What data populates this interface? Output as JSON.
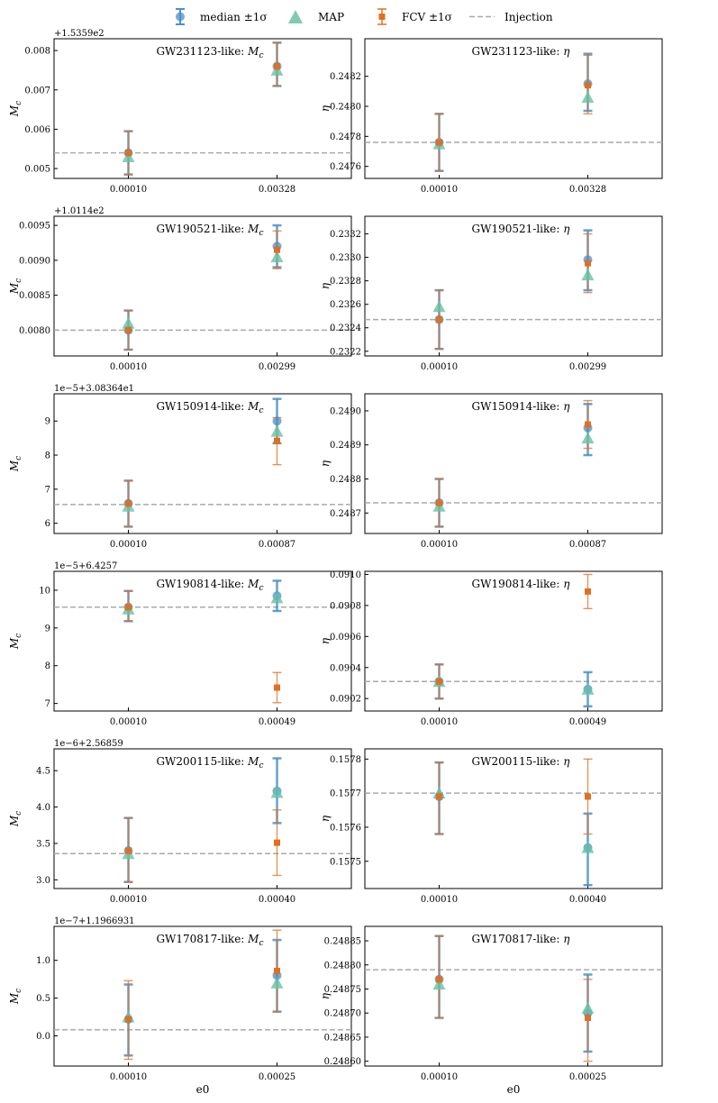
{
  "legend": {
    "items": [
      {
        "label": "median ±1σ",
        "marker": "circle-errorbar",
        "color": "#4a90c8"
      },
      {
        "label": "MAP",
        "marker": "triangle",
        "color": "#66c2a5"
      },
      {
        "label": "FCV ±1σ",
        "marker": "square-errorbar",
        "color": "#e07020"
      },
      {
        "label": "Injection",
        "marker": "dashed-line",
        "color": "#aaaaaa"
      }
    ]
  },
  "colors": {
    "median": "#4a90c8",
    "map": "#66c2a5",
    "fcv": "#e07020",
    "injection": "#aaaaaa",
    "overlap": "#8c7b70"
  },
  "chart_data": [
    {
      "type": "errorbar",
      "title": "GW231123-like: ",
      "title_symbol": "M",
      "title_sub": "c",
      "ylabel": "M",
      "ylabel_sub": "c",
      "offset_label": "+1.5359e2",
      "xlabel": "",
      "categories": [
        "0.00010",
        "0.00328"
      ],
      "ylim": [
        0.00475,
        0.0083
      ],
      "yticks": [
        0.005,
        0.006,
        0.007,
        0.008
      ],
      "ytick_labels": [
        "0.005",
        "0.006",
        "0.007",
        "0.008"
      ],
      "injection": 0.0054,
      "median": [
        0.0054,
        0.0076
      ],
      "median_err": [
        [
          0.00485,
          0.00595
        ],
        [
          0.0071,
          0.0082
        ]
      ],
      "map": [
        0.0053,
        0.0075
      ],
      "fcv": [
        0.0054,
        0.0076
      ],
      "fcv_err": [
        [
          0.00485,
          0.00595
        ],
        [
          0.0071,
          0.0082
        ]
      ]
    },
    {
      "type": "errorbar",
      "title": "GW231123-like: ",
      "title_symbol": "η",
      "title_sub": "",
      "ylabel": "η",
      "ylabel_sub": "",
      "offset_label": "",
      "xlabel": "",
      "categories": [
        "0.00010",
        "0.00328"
      ],
      "ylim": [
        0.24752,
        0.24845
      ],
      "yticks": [
        0.2476,
        0.2478,
        0.248,
        0.2482
      ],
      "ytick_labels": [
        "0.2476",
        "0.2478",
        "0.2480",
        "0.2482"
      ],
      "injection": 0.24776,
      "median": [
        0.24776,
        0.24815
      ],
      "median_err": [
        [
          0.24757,
          0.24795
        ],
        [
          0.24797,
          0.24835
        ]
      ],
      "map": [
        0.24775,
        0.24806
      ],
      "fcv": [
        0.24776,
        0.24814
      ],
      "fcv_err": [
        [
          0.24757,
          0.24795
        ],
        [
          0.24795,
          0.24834
        ]
      ]
    },
    {
      "type": "errorbar",
      "title": "GW190521-like: ",
      "title_symbol": "M",
      "title_sub": "c",
      "ylabel": "M",
      "ylabel_sub": "c",
      "offset_label": "+1.0114e2",
      "xlabel": "",
      "categories": [
        "0.00010",
        "0.00299"
      ],
      "ylim": [
        0.00763,
        0.00963
      ],
      "yticks": [
        0.008,
        0.0085,
        0.009,
        0.0095
      ],
      "ytick_labels": [
        "0.0080",
        "0.0085",
        "0.0090",
        "0.0095"
      ],
      "injection": 0.008,
      "median": [
        0.008,
        0.0092
      ],
      "median_err": [
        [
          0.00772,
          0.00828
        ],
        [
          0.0089,
          0.0095
        ]
      ],
      "map": [
        0.0081,
        0.00905
      ],
      "fcv": [
        0.008,
        0.00915
      ],
      "fcv_err": [
        [
          0.00772,
          0.00828
        ],
        [
          0.00888,
          0.00942
        ]
      ]
    },
    {
      "type": "errorbar",
      "title": "GW190521-like: ",
      "title_symbol": "η",
      "title_sub": "",
      "ylabel": "η",
      "ylabel_sub": "",
      "offset_label": "",
      "xlabel": "",
      "categories": [
        "0.00010",
        "0.00299"
      ],
      "ylim": [
        0.23216,
        0.23335
      ],
      "yticks": [
        0.2322,
        0.2324,
        0.2326,
        0.2328,
        0.233,
        0.2332
      ],
      "ytick_labels": [
        "0.2322",
        "0.2324",
        "0.2326",
        "0.2328",
        "0.2330",
        "0.2332"
      ],
      "injection": 0.23247,
      "median": [
        0.23247,
        0.23298
      ],
      "median_err": [
        [
          0.23222,
          0.23272
        ],
        [
          0.23272,
          0.23323
        ]
      ],
      "map": [
        0.23258,
        0.23285
      ],
      "fcv": [
        0.23247,
        0.23295
      ],
      "fcv_err": [
        [
          0.23222,
          0.23272
        ],
        [
          0.2327,
          0.2332
        ]
      ]
    },
    {
      "type": "errorbar",
      "title": "GW150914-like: ",
      "title_symbol": "M",
      "title_sub": "c",
      "ylabel": "M",
      "ylabel_sub": "c",
      "offset_label": "1e−5+3.08364e1",
      "xlabel": "",
      "categories": [
        "0.00010",
        "0.00087"
      ],
      "ylim": [
        5.7,
        9.8
      ],
      "yticks": [
        6,
        7,
        8,
        9
      ],
      "ytick_labels": [
        "6",
        "7",
        "8",
        "9"
      ],
      "injection": 6.55,
      "median": [
        6.58,
        9.0
      ],
      "median_err": [
        [
          5.9,
          7.25
        ],
        [
          8.35,
          9.65
        ]
      ],
      "map": [
        6.5,
        8.7
      ],
      "fcv": [
        6.58,
        8.42
      ],
      "fcv_err": [
        [
          5.9,
          7.25
        ],
        [
          7.72,
          9.1
        ]
      ]
    },
    {
      "type": "errorbar",
      "title": "GW150914-like: ",
      "title_symbol": "η",
      "title_sub": "",
      "ylabel": "η",
      "ylabel_sub": "",
      "offset_label": "",
      "xlabel": "",
      "categories": [
        "0.00010",
        "0.00087"
      ],
      "ylim": [
        0.24864,
        0.24905
      ],
      "yticks": [
        0.2487,
        0.2488,
        0.2489,
        0.249
      ],
      "ytick_labels": [
        "0.2487",
        "0.2488",
        "0.2489",
        "0.2490"
      ],
      "injection": 0.24873,
      "median": [
        0.24873,
        0.24895
      ],
      "median_err": [
        [
          0.24866,
          0.2488
        ],
        [
          0.24887,
          0.24902
        ]
      ],
      "map": [
        0.24872,
        0.24892
      ],
      "fcv": [
        0.24873,
        0.24896
      ],
      "fcv_err": [
        [
          0.24866,
          0.2488
        ],
        [
          0.24889,
          0.24903
        ]
      ]
    },
    {
      "type": "errorbar",
      "title": "GW190814-like: ",
      "title_symbol": "M",
      "title_sub": "c",
      "ylabel": "M",
      "ylabel_sub": "c",
      "offset_label": "1e−5+6.4257",
      "xlabel": "",
      "categories": [
        "0.00010",
        "0.00049"
      ],
      "ylim": [
        6.8,
        10.5
      ],
      "yticks": [
        7,
        8,
        9,
        10
      ],
      "ytick_labels": [
        "7",
        "8",
        "9",
        "10"
      ],
      "injection": 9.55,
      "median": [
        9.55,
        9.85
      ],
      "median_err": [
        [
          9.18,
          9.98
        ],
        [
          9.45,
          10.25
        ]
      ],
      "map": [
        9.5,
        9.8
      ],
      "fcv": [
        9.55,
        7.42
      ],
      "fcv_err": [
        [
          9.18,
          9.98
        ],
        [
          7.02,
          7.82
        ]
      ]
    },
    {
      "type": "errorbar",
      "title": "GW190814-like: ",
      "title_symbol": "η",
      "title_sub": "",
      "ylabel": "η",
      "ylabel_sub": "",
      "offset_label": "",
      "xlabel": "",
      "categories": [
        "0.00010",
        "0.00049"
      ],
      "ylim": [
        0.09012,
        0.09102
      ],
      "yticks": [
        0.0902,
        0.0904,
        0.0906,
        0.0908,
        0.091
      ],
      "ytick_labels": [
        "0.0902",
        "0.0904",
        "0.0906",
        "0.0908",
        "0.0910"
      ],
      "injection": 0.09031,
      "median": [
        0.09031,
        0.09026
      ],
      "median_err": [
        [
          0.0902,
          0.09042
        ],
        [
          0.09015,
          0.09037
        ]
      ],
      "map": [
        0.09031,
        0.09026
      ],
      "fcv": [
        0.09031,
        0.09089
      ],
      "fcv_err": [
        [
          0.0902,
          0.09042
        ],
        [
          0.09078,
          0.091
        ]
      ]
    },
    {
      "type": "errorbar",
      "title": "GW200115-like: ",
      "title_symbol": "M",
      "title_sub": "c",
      "ylabel": "M",
      "ylabel_sub": "c",
      "offset_label": "1e−6+2.56859",
      "xlabel": "",
      "categories": [
        "0.00010",
        "0.00040"
      ],
      "ylim": [
        2.88,
        4.8
      ],
      "yticks": [
        3.0,
        3.5,
        4.0,
        4.5
      ],
      "ytick_labels": [
        "3.0",
        "3.5",
        "4.0",
        "4.5"
      ],
      "injection": 3.36,
      "median": [
        3.4,
        4.22
      ],
      "median_err": [
        [
          2.97,
          3.85
        ],
        [
          3.78,
          4.67
        ]
      ],
      "map": [
        3.36,
        4.2
      ],
      "fcv": [
        3.4,
        3.51
      ],
      "fcv_err": [
        [
          2.97,
          3.85
        ],
        [
          3.06,
          3.96
        ]
      ]
    },
    {
      "type": "errorbar",
      "title": "GW200115-like: ",
      "title_symbol": "η",
      "title_sub": "",
      "ylabel": "η",
      "ylabel_sub": "",
      "offset_label": "",
      "xlabel": "",
      "categories": [
        "0.00010",
        "0.00040"
      ],
      "ylim": [
        0.15742,
        0.15783
      ],
      "yticks": [
        0.1575,
        0.1576,
        0.1577,
        0.1578
      ],
      "ytick_labels": [
        "0.1575",
        "0.1576",
        "0.1577",
        "0.1578"
      ],
      "injection": 0.1577,
      "median": [
        0.15769,
        0.15754
      ],
      "median_err": [
        [
          0.15758,
          0.15779
        ],
        [
          0.15743,
          0.15764
        ]
      ],
      "map": [
        0.1577,
        0.15754
      ],
      "fcv": [
        0.15769,
        0.15769
      ],
      "fcv_err": [
        [
          0.15758,
          0.15779
        ],
        [
          0.15758,
          0.1578
        ]
      ]
    },
    {
      "type": "errorbar",
      "title": "GW170817-like: ",
      "title_symbol": "M",
      "title_sub": "c",
      "ylabel": "M",
      "ylabel_sub": "c",
      "offset_label": "1e−7+1.1966931",
      "xlabel": "e0",
      "categories": [
        "0.00010",
        "0.00025"
      ],
      "ylim": [
        -0.4,
        1.45
      ],
      "yticks": [
        0.0,
        0.5,
        1.0
      ],
      "ytick_labels": [
        "0.0",
        "0.5",
        "1.0"
      ],
      "injection": 0.08,
      "median": [
        0.22,
        0.8
      ],
      "median_err": [
        [
          -0.26,
          0.68
        ],
        [
          0.32,
          1.27
        ]
      ],
      "map": [
        0.25,
        0.7
      ],
      "fcv": [
        0.22,
        0.86
      ],
      "fcv_err": [
        [
          -0.31,
          0.73
        ],
        [
          0.32,
          1.4
        ]
      ]
    },
    {
      "type": "errorbar",
      "title": "GW170817-like: ",
      "title_symbol": "η",
      "title_sub": "",
      "ylabel": "η",
      "ylabel_sub": "",
      "offset_label": "",
      "xlabel": "e0",
      "categories": [
        "0.00010",
        "0.00025"
      ],
      "ylim": [
        0.24859,
        0.24888
      ],
      "yticks": [
        0.2486,
        0.24865,
        0.2487,
        0.24875,
        0.2488,
        0.24885
      ],
      "ytick_labels": [
        "0.24860",
        "0.24865",
        "0.24870",
        "0.24875",
        "0.24880",
        "0.24885"
      ],
      "injection": 0.24879,
      "median": [
        0.24877,
        0.2487
      ],
      "median_err": [
        [
          0.24869,
          0.24886
        ],
        [
          0.24862,
          0.24878
        ]
      ],
      "map": [
        0.24876,
        0.24871
      ],
      "fcv": [
        0.24877,
        0.24869
      ],
      "fcv_err": [
        [
          0.24869,
          0.24886
        ],
        [
          0.2486,
          0.24877
        ]
      ]
    }
  ]
}
